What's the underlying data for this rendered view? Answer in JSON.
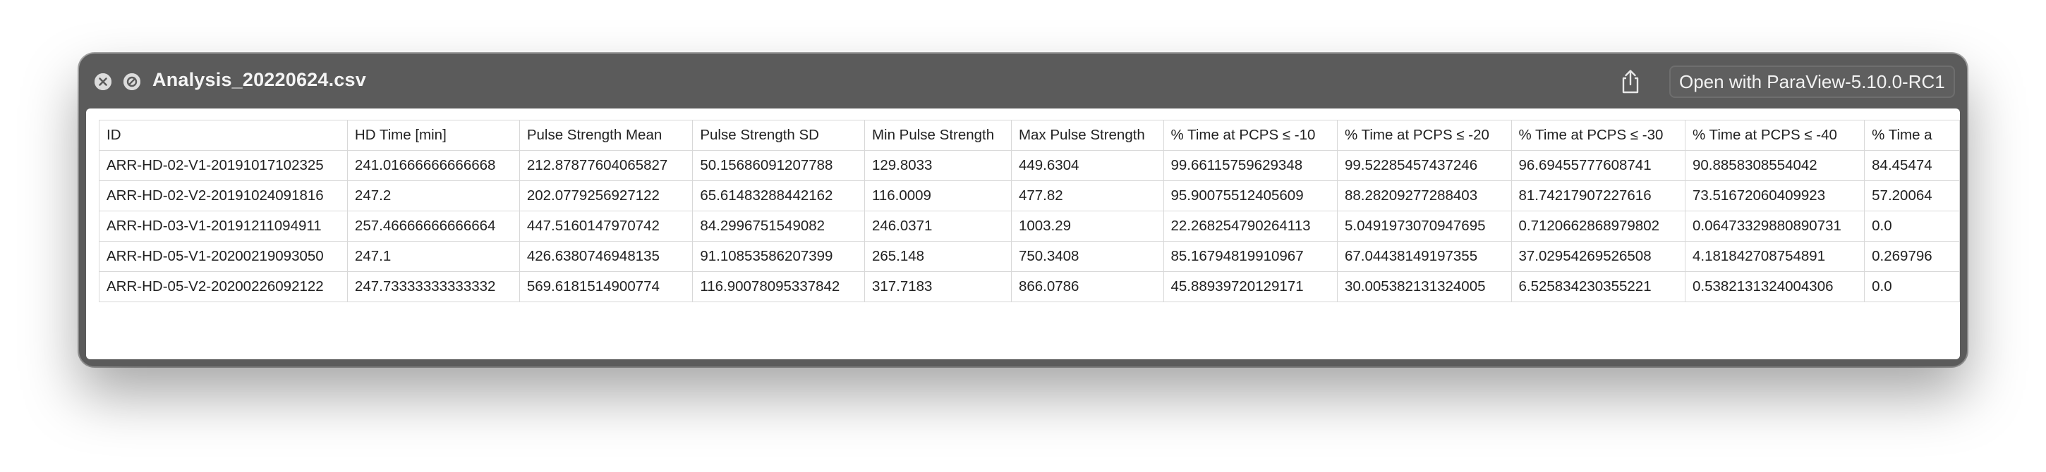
{
  "window": {
    "title": "Analysis_20220624.csv",
    "open_with_label": "Open with ParaView-5.10.0-RC1"
  },
  "table": {
    "headers": [
      "ID",
      "HD Time [min]",
      "Pulse Strength Mean",
      "Pulse Strength SD",
      "Min Pulse Strength",
      "Max Pulse Strength",
      "% Time at PCPS ≤ -10",
      "% Time at PCPS ≤ -20",
      "% Time at PCPS ≤ -30",
      "% Time at PCPS ≤ -40",
      "% Time a"
    ],
    "rows": [
      [
        "ARR-HD-02-V1-20191017102325",
        "241.01666666666668",
        "212.87877604065827",
        "50.15686091207788",
        "129.8033",
        "449.6304",
        "99.66115759629348",
        "99.52285457437246",
        "96.69455777608741",
        "90.8858308554042",
        "84.45474"
      ],
      [
        "ARR-HD-02-V2-20191024091816",
        "247.2",
        "202.0779256927122",
        "65.61483288442162",
        "116.0009",
        "477.82",
        "95.90075512405609",
        "88.28209277288403",
        "81.74217907227616",
        "73.51672060409923",
        "57.20064"
      ],
      [
        "ARR-HD-03-V1-20191211094911",
        "257.46666666666664",
        "447.5160147970742",
        "84.2996751549082",
        "246.0371",
        "1003.29",
        "22.268254790264113",
        "5.0491973070947695",
        "0.7120662868979802",
        "0.06473329880890731",
        "0.0"
      ],
      [
        "ARR-HD-05-V1-20200219093050",
        "247.1",
        "426.6380746948135",
        "91.10853586207399",
        "265.148",
        "750.3408",
        "85.16794819910967",
        "67.04438149197355",
        "37.02954269526508",
        "4.181842708754891",
        "0.269796"
      ],
      [
        "ARR-HD-05-V2-20200226092122",
        "247.73333333333332",
        "569.6181514900774",
        "116.90078095337842",
        "317.7183",
        "866.0786",
        "45.88939720129171",
        "30.005382131324005",
        "6.525834230355221",
        "0.5382131324004306",
        "0.0"
      ]
    ]
  }
}
